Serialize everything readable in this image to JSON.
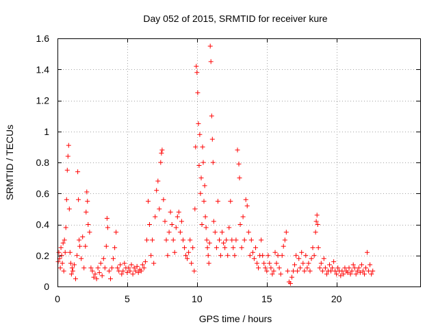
{
  "chart_data": {
    "type": "scatter",
    "title": "Day 052 of 2015, SRMTID for receiver kure",
    "xlabel": "GPS time / hours",
    "ylabel": "SRMTID / TECUs",
    "xlim": [
      0,
      26
    ],
    "ylim": [
      0,
      1.6
    ],
    "x_ticks": [
      0,
      5,
      10,
      15,
      20
    ],
    "x_tick_labels": [
      "0",
      "5",
      "10",
      "15",
      "20"
    ],
    "y_ticks": [
      0,
      0.2,
      0.4,
      0.6,
      0.8,
      1.0,
      1.2,
      1.4,
      1.6
    ],
    "y_tick_labels": [
      "0",
      "0.2",
      "0.4",
      "0.6",
      "0.8",
      "1",
      "1.2",
      "1.4",
      "1.6"
    ],
    "grid": true,
    "marker": "+",
    "color": "#ff0000",
    "series": [
      {
        "name": "SRMTID",
        "points": [
          [
            0.05,
            0.16
          ],
          [
            0.1,
            0.22
          ],
          [
            0.15,
            0.18
          ],
          [
            0.2,
            0.12
          ],
          [
            0.25,
            0.25
          ],
          [
            0.3,
            0.2
          ],
          [
            0.35,
            0.15
          ],
          [
            0.4,
            0.28
          ],
          [
            0.45,
            0.1
          ],
          [
            0.5,
            0.3
          ],
          [
            0.55,
            0.22
          ],
          [
            0.6,
            0.38
          ],
          [
            0.65,
            0.56
          ],
          [
            0.7,
            0.75
          ],
          [
            0.75,
            0.84
          ],
          [
            0.8,
            0.91
          ],
          [
            0.85,
            0.5
          ],
          [
            0.9,
            0.22
          ],
          [
            0.95,
            0.15
          ],
          [
            1.0,
            0.08
          ],
          [
            1.05,
            0.12
          ],
          [
            1.1,
            0.1
          ],
          [
            1.2,
            0.14
          ],
          [
            1.3,
            0.05
          ],
          [
            1.4,
            0.2
          ],
          [
            1.45,
            0.74
          ],
          [
            1.5,
            0.56
          ],
          [
            1.55,
            0.3
          ],
          [
            1.6,
            0.26
          ],
          [
            1.7,
            0.18
          ],
          [
            1.8,
            0.32
          ],
          [
            1.9,
            0.12
          ],
          [
            2.0,
            0.26
          ],
          [
            2.05,
            0.48
          ],
          [
            2.1,
            0.61
          ],
          [
            2.15,
            0.55
          ],
          [
            2.2,
            0.4
          ],
          [
            2.3,
            0.35
          ],
          [
            2.4,
            0.12
          ],
          [
            2.5,
            0.1
          ],
          [
            2.6,
            0.06
          ],
          [
            2.7,
            0.08
          ],
          [
            2.8,
            0.05
          ],
          [
            2.9,
            0.12
          ],
          [
            3.0,
            0.09
          ],
          [
            3.1,
            0.15
          ],
          [
            3.2,
            0.07
          ],
          [
            3.3,
            0.18
          ],
          [
            3.4,
            0.12
          ],
          [
            3.5,
            0.26
          ],
          [
            3.55,
            0.44
          ],
          [
            3.6,
            0.38
          ],
          [
            3.7,
            0.1
          ],
          [
            3.8,
            0.05
          ],
          [
            3.9,
            0.12
          ],
          [
            4.0,
            0.18
          ],
          [
            4.1,
            0.25
          ],
          [
            4.2,
            0.35
          ],
          [
            4.3,
            0.12
          ],
          [
            4.4,
            0.1
          ],
          [
            4.5,
            0.14
          ],
          [
            4.6,
            0.08
          ],
          [
            4.7,
            0.1
          ],
          [
            4.8,
            0.15
          ],
          [
            4.9,
            0.12
          ],
          [
            5.0,
            0.09
          ],
          [
            5.1,
            0.12
          ],
          [
            5.2,
            0.1
          ],
          [
            5.3,
            0.14
          ],
          [
            5.4,
            0.08
          ],
          [
            5.5,
            0.12
          ],
          [
            5.6,
            0.1
          ],
          [
            5.7,
            0.13
          ],
          [
            5.8,
            0.09
          ],
          [
            5.9,
            0.11
          ],
          [
            6.0,
            0.1
          ],
          [
            6.1,
            0.14
          ],
          [
            6.2,
            0.12
          ],
          [
            6.3,
            0.16
          ],
          [
            6.4,
            0.3
          ],
          [
            6.5,
            0.55
          ],
          [
            6.6,
            0.4
          ],
          [
            6.7,
            0.2
          ],
          [
            6.8,
            0.3
          ],
          [
            6.9,
            0.15
          ],
          [
            7.0,
            0.45
          ],
          [
            7.1,
            0.62
          ],
          [
            7.2,
            0.68
          ],
          [
            7.3,
            0.5
          ],
          [
            7.4,
            0.8
          ],
          [
            7.45,
            0.86
          ],
          [
            7.5,
            0.88
          ],
          [
            7.6,
            0.56
          ],
          [
            7.7,
            0.42
          ],
          [
            7.8,
            0.3
          ],
          [
            7.9,
            0.2
          ],
          [
            8.0,
            0.35
          ],
          [
            8.1,
            0.48
          ],
          [
            8.2,
            0.4
          ],
          [
            8.3,
            0.3
          ],
          [
            8.4,
            0.22
          ],
          [
            8.5,
            0.38
          ],
          [
            8.6,
            0.45
          ],
          [
            8.7,
            0.48
          ],
          [
            8.8,
            0.35
          ],
          [
            8.9,
            0.42
          ],
          [
            9.0,
            0.3
          ],
          [
            9.1,
            0.25
          ],
          [
            9.2,
            0.2
          ],
          [
            9.3,
            0.18
          ],
          [
            9.4,
            0.22
          ],
          [
            9.5,
            0.3
          ],
          [
            9.6,
            0.15
          ],
          [
            9.7,
            0.25
          ],
          [
            9.8,
            0.1
          ],
          [
            9.85,
            0.5
          ],
          [
            9.9,
            0.9
          ],
          [
            9.95,
            1.42
          ],
          [
            10.0,
            1.38
          ],
          [
            10.05,
            1.25
          ],
          [
            10.1,
            1.05
          ],
          [
            10.15,
            0.78
          ],
          [
            10.2,
            0.98
          ],
          [
            10.25,
            0.6
          ],
          [
            10.3,
            0.7
          ],
          [
            10.35,
            0.4
          ],
          [
            10.4,
            0.9
          ],
          [
            10.45,
            0.8
          ],
          [
            10.5,
            0.55
          ],
          [
            10.55,
            0.65
          ],
          [
            10.6,
            0.45
          ],
          [
            10.65,
            0.38
          ],
          [
            10.7,
            0.3
          ],
          [
            10.75,
            0.25
          ],
          [
            10.8,
            0.2
          ],
          [
            10.85,
            0.15
          ],
          [
            10.9,
            0.28
          ],
          [
            10.95,
            1.55
          ],
          [
            11.0,
            1.45
          ],
          [
            11.05,
            1.1
          ],
          [
            11.1,
            0.95
          ],
          [
            11.15,
            0.8
          ],
          [
            11.2,
            0.42
          ],
          [
            11.3,
            0.35
          ],
          [
            11.4,
            0.25
          ],
          [
            11.5,
            0.55
          ],
          [
            11.6,
            0.3
          ],
          [
            11.7,
            0.2
          ],
          [
            11.8,
            0.35
          ],
          [
            11.9,
            0.28
          ],
          [
            12.0,
            0.25
          ],
          [
            12.1,
            0.3
          ],
          [
            12.2,
            0.2
          ],
          [
            12.3,
            0.38
          ],
          [
            12.4,
            0.55
          ],
          [
            12.5,
            0.3
          ],
          [
            12.6,
            0.25
          ],
          [
            12.7,
            0.2
          ],
          [
            12.8,
            0.3
          ],
          [
            12.9,
            0.88
          ],
          [
            13.0,
            0.79
          ],
          [
            13.05,
            0.7
          ],
          [
            13.1,
            0.4
          ],
          [
            13.2,
            0.25
          ],
          [
            13.3,
            0.45
          ],
          [
            13.4,
            0.3
          ],
          [
            13.5,
            0.56
          ],
          [
            13.6,
            0.52
          ],
          [
            13.7,
            0.35
          ],
          [
            13.8,
            0.2
          ],
          [
            13.9,
            0.3
          ],
          [
            14.0,
            0.22
          ],
          [
            14.1,
            0.18
          ],
          [
            14.2,
            0.25
          ],
          [
            14.3,
            0.15
          ],
          [
            14.4,
            0.12
          ],
          [
            14.5,
            0.2
          ],
          [
            14.6,
            0.3
          ],
          [
            14.7,
            0.2
          ],
          [
            14.8,
            0.15
          ],
          [
            14.9,
            0.12
          ],
          [
            15.0,
            0.1
          ],
          [
            15.1,
            0.2
          ],
          [
            15.2,
            0.15
          ],
          [
            15.3,
            0.12
          ],
          [
            15.4,
            0.08
          ],
          [
            15.5,
            0.1
          ],
          [
            15.6,
            0.22
          ],
          [
            15.7,
            0.15
          ],
          [
            15.8,
            0.2
          ],
          [
            15.9,
            0.12
          ],
          [
            16.0,
            0.08
          ],
          [
            16.1,
            0.2
          ],
          [
            16.2,
            0.26
          ],
          [
            16.3,
            0.3
          ],
          [
            16.4,
            0.35
          ],
          [
            16.5,
            0.1
          ],
          [
            16.6,
            0.03
          ],
          [
            16.7,
            0.02
          ],
          [
            16.8,
            0.06
          ],
          [
            16.9,
            0.1
          ],
          [
            17.0,
            0.14
          ],
          [
            17.1,
            0.2
          ],
          [
            17.2,
            0.1
          ],
          [
            17.3,
            0.18
          ],
          [
            17.4,
            0.12
          ],
          [
            17.5,
            0.22
          ],
          [
            17.6,
            0.15
          ],
          [
            17.7,
            0.1
          ],
          [
            17.8,
            0.2
          ],
          [
            17.9,
            0.12
          ],
          [
            18.0,
            0.15
          ],
          [
            18.1,
            0.1
          ],
          [
            18.2,
            0.18
          ],
          [
            18.3,
            0.25
          ],
          [
            18.4,
            0.2
          ],
          [
            18.5,
            0.35
          ],
          [
            18.55,
            0.42
          ],
          [
            18.6,
            0.46
          ],
          [
            18.65,
            0.4
          ],
          [
            18.7,
            0.25
          ],
          [
            18.8,
            0.12
          ],
          [
            18.9,
            0.15
          ],
          [
            19.0,
            0.1
          ],
          [
            19.1,
            0.18
          ],
          [
            19.2,
            0.12
          ],
          [
            19.3,
            0.08
          ],
          [
            19.4,
            0.1
          ],
          [
            19.5,
            0.14
          ],
          [
            19.6,
            0.1
          ],
          [
            19.7,
            0.12
          ],
          [
            19.8,
            0.16
          ],
          [
            19.9,
            0.1
          ],
          [
            20.0,
            0.08
          ],
          [
            20.1,
            0.12
          ],
          [
            20.2,
            0.1
          ],
          [
            20.3,
            0.07
          ],
          [
            20.4,
            0.1
          ],
          [
            20.5,
            0.08
          ],
          [
            20.6,
            0.12
          ],
          [
            20.7,
            0.1
          ],
          [
            20.8,
            0.09
          ],
          [
            20.9,
            0.12
          ],
          [
            21.0,
            0.08
          ],
          [
            21.1,
            0.1
          ],
          [
            21.2,
            0.14
          ],
          [
            21.3,
            0.12
          ],
          [
            21.4,
            0.08
          ],
          [
            21.5,
            0.1
          ],
          [
            21.6,
            0.12
          ],
          [
            21.7,
            0.09
          ],
          [
            21.8,
            0.14
          ],
          [
            21.9,
            0.1
          ],
          [
            22.0,
            0.08
          ],
          [
            22.1,
            0.12
          ],
          [
            22.2,
            0.22
          ],
          [
            22.3,
            0.1
          ],
          [
            22.4,
            0.14
          ],
          [
            22.5,
            0.08
          ],
          [
            22.6,
            0.1
          ]
        ]
      }
    ]
  }
}
